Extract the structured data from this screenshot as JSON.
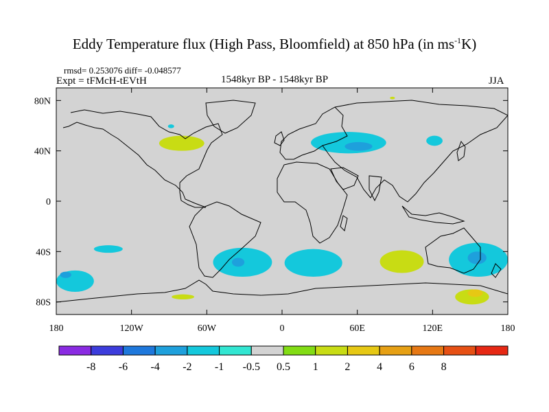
{
  "header": {
    "title_main": "Eddy Temperature flux (High Pass, Bloomfield) at 850 hPa (in ms",
    "title_sup": "-1",
    "title_end": "K)",
    "stats": "rmsd= 0.253076 diff= -0.048577",
    "experiment": "Expt = tFMcH-tEVtH",
    "period": "1548kyr BP - 1548kyr BP",
    "season": "JJA"
  },
  "chart_data": {
    "type": "heatmap",
    "title": "Eddy Temperature flux (High Pass, Bloomfield) at 850 hPa (in ms-1K)",
    "projection": "cylindrical-equidistant",
    "xlim": [
      -180,
      180
    ],
    "ylim": [
      -90,
      90
    ],
    "x_ticks": [
      {
        "value": -180,
        "label": "180"
      },
      {
        "value": -120,
        "label": "120W"
      },
      {
        "value": -60,
        "label": "60W"
      },
      {
        "value": 0,
        "label": "0"
      },
      {
        "value": 60,
        "label": "60E"
      },
      {
        "value": 120,
        "label": "120E"
      },
      {
        "value": 180,
        "label": "180"
      }
    ],
    "y_ticks": [
      {
        "value": 80,
        "label": "80N"
      },
      {
        "value": 40,
        "label": "40N"
      },
      {
        "value": 0,
        "label": "0"
      },
      {
        "value": -40,
        "label": "40S"
      },
      {
        "value": -80,
        "label": "80S"
      }
    ],
    "background_color": "#d3d3d3",
    "colorbar": {
      "colors": [
        "#8a2be2",
        "#3c3cdc",
        "#1e78dc",
        "#1ea0dc",
        "#14c8dc",
        "#32e6d2",
        "#d3d3d3",
        "#82dc14",
        "#c8dc14",
        "#e6c814",
        "#e6a014",
        "#e67814",
        "#e65014",
        "#e62814"
      ],
      "labels": [
        "-8",
        "-6",
        "-4",
        "-2",
        "-1",
        "-0.5",
        "0.5",
        "1",
        "2",
        "4",
        "6",
        "8"
      ]
    },
    "anomalies": [
      {
        "region": "central Asia",
        "lon": [
          23,
          83
        ],
        "lat": [
          38,
          55
        ],
        "level": "-1"
      },
      {
        "region": "central Asia core",
        "lon": [
          50,
          72
        ],
        "lat": [
          40,
          47
        ],
        "level": "-2"
      },
      {
        "region": "Siberia",
        "lon": [
          115,
          128
        ],
        "lat": [
          44,
          52
        ],
        "level": "-1"
      },
      {
        "region": "Arctic north Asia",
        "lon": [
          86,
          90
        ],
        "lat": [
          81,
          83
        ],
        "level": "1"
      },
      {
        "region": "Great Lakes",
        "lon": [
          -98,
          -62
        ],
        "lat": [
          40,
          52
        ],
        "level": "1"
      },
      {
        "region": "Hudson",
        "lon": [
          -91,
          -86
        ],
        "lat": [
          58,
          61
        ],
        "level": "-1"
      },
      {
        "region": "South Pacific",
        "lon": [
          -150,
          -127
        ],
        "lat": [
          -41,
          -35
        ],
        "level": "-1"
      },
      {
        "region": "Pacific 60S",
        "lon": [
          -180,
          -150
        ],
        "lat": [
          -72,
          -55
        ],
        "level": "-1"
      },
      {
        "region": "Pacific 60S core",
        "lon": [
          -177,
          -168
        ],
        "lat": [
          -61,
          -56
        ],
        "level": "-2"
      },
      {
        "region": "South Atlantic",
        "lon": [
          -55,
          -8
        ],
        "lat": [
          -60,
          -37
        ],
        "level": "-1"
      },
      {
        "region": "South Atlantic core",
        "lon": [
          -40,
          -30
        ],
        "lat": [
          -52,
          -45
        ],
        "level": "-2"
      },
      {
        "region": "SW Indian Ocean",
        "lon": [
          2,
          48
        ],
        "lat": [
          -60,
          -38
        ],
        "level": "-1"
      },
      {
        "region": "Southern Indian Ocean",
        "lon": [
          78,
          113
        ],
        "lat": [
          -57,
          -39
        ],
        "level": "1"
      },
      {
        "region": "Australia",
        "lon": [
          133,
          180
        ],
        "lat": [
          -60,
          -33
        ],
        "level": "-1"
      },
      {
        "region": "Australia core",
        "lon": [
          148,
          163
        ],
        "lat": [
          -50,
          -40
        ],
        "level": "-2"
      },
      {
        "region": "Ross Sea",
        "lon": [
          138,
          165
        ],
        "lat": [
          -82,
          -70
        ],
        "level": "1"
      },
      {
        "region": "Ross Sea core",
        "lon": [
          148,
          160
        ],
        "lat": [
          -76,
          -70
        ],
        "level": "2"
      },
      {
        "region": "Bellingshausen",
        "lon": [
          -88,
          -70
        ],
        "lat": [
          -78,
          -74
        ],
        "level": "1"
      }
    ]
  }
}
